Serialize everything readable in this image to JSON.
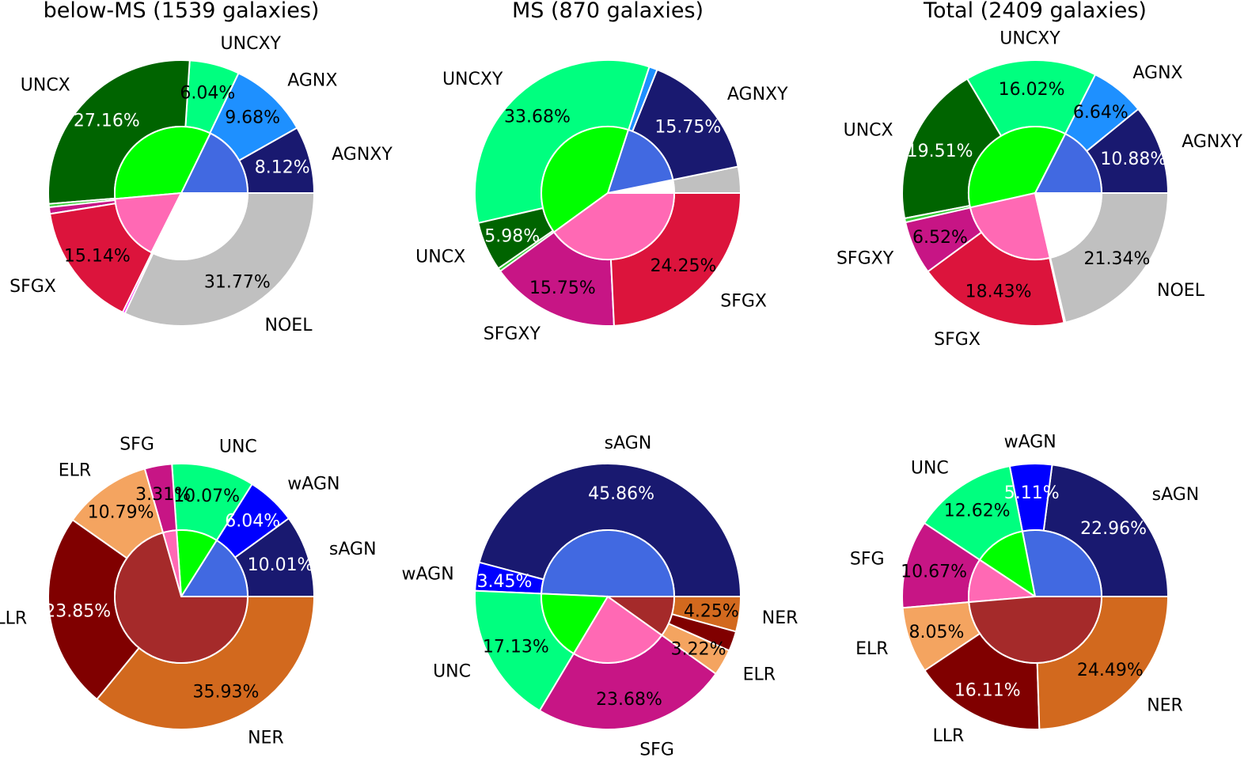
{
  "chart_data": [
    {
      "type": "pie",
      "title": "below-MS (1539 galaxies)",
      "outer": [
        {
          "label": "AGNXY",
          "value": 8.12,
          "color": "#191970",
          "pct_label": "8.12%",
          "pct_color": "#ffffff"
        },
        {
          "label": "AGNX",
          "value": 9.68,
          "color": "#1e90ff",
          "pct_label": "9.68%",
          "pct_color": "#000000"
        },
        {
          "label": "UNCXY",
          "value": 6.04,
          "color": "#00ff7f",
          "pct_label": "6.04%",
          "pct_color": "#000000"
        },
        {
          "label": "UNCX",
          "value": 27.16,
          "color": "#006400",
          "pct_label": "27.16%",
          "pct_color": "#ffffff"
        },
        {
          "label": "",
          "value": 0.4,
          "color": "#32cd32"
        },
        {
          "label": "",
          "value": 0.8,
          "color": "#c71585"
        },
        {
          "label": "SFGX",
          "value": 15.14,
          "color": "#dc143c",
          "pct_label": "15.14%",
          "pct_color": "#000000"
        },
        {
          "label": "",
          "value": 0.3,
          "color": "#ff00ff"
        },
        {
          "label": "NOEL",
          "value": 31.77,
          "color": "#c0c0c0",
          "pct_label": "31.77%",
          "pct_color": "#000000"
        }
      ],
      "inner": [
        {
          "value": 17.8,
          "color": "#4169e1"
        },
        {
          "value": 33.6,
          "color": "#00ff00"
        },
        {
          "value": 16.2,
          "color": "#ff69b4"
        },
        {
          "value": 32.4,
          "color": "#ffffff"
        }
      ]
    },
    {
      "type": "pie",
      "title": "MS (870 galaxies)",
      "outer": [
        {
          "label": "",
          "value": 3.2,
          "color": "#c0c0c0"
        },
        {
          "label": "AGNXY",
          "value": 15.75,
          "color": "#191970",
          "pct_label": "15.75%",
          "pct_color": "#ffffff"
        },
        {
          "label": "",
          "value": 1.0,
          "color": "#1e90ff"
        },
        {
          "label": "UNCXY",
          "value": 33.68,
          "color": "#00ff7f",
          "pct_label": "33.68%",
          "pct_color": "#000000"
        },
        {
          "label": "UNCX",
          "value": 5.98,
          "color": "#006400",
          "pct_label": "5.98%",
          "pct_color": "#ffffff"
        },
        {
          "label": "",
          "value": 0.4,
          "color": "#32cd32"
        },
        {
          "label": "SFGXY",
          "value": 15.75,
          "color": "#c71585",
          "pct_label": "15.75%",
          "pct_color": "#000000"
        },
        {
          "label": "SFGX",
          "value": 24.25,
          "color": "#dc143c",
          "pct_label": "24.25%",
          "pct_color": "#000000"
        }
      ],
      "inner": [
        {
          "value": 3.2,
          "color": "#ffffff"
        },
        {
          "value": 16.8,
          "color": "#4169e1"
        },
        {
          "value": 40.0,
          "color": "#00ff00"
        },
        {
          "value": 40.0,
          "color": "#ff69b4"
        }
      ]
    },
    {
      "type": "pie",
      "title": "Total (2409 galaxies)",
      "outer": [
        {
          "label": "AGNXY",
          "value": 10.88,
          "color": "#191970",
          "pct_label": "10.88%",
          "pct_color": "#ffffff"
        },
        {
          "label": "AGNX",
          "value": 6.64,
          "color": "#1e90ff",
          "pct_label": "6.64%",
          "pct_color": "#000000"
        },
        {
          "label": "UNCXY",
          "value": 16.02,
          "color": "#00ff7f",
          "pct_label": "16.02%",
          "pct_color": "#000000"
        },
        {
          "label": "UNCX",
          "value": 19.51,
          "color": "#006400",
          "pct_label": "19.51%",
          "pct_color": "#ffffff"
        },
        {
          "label": "",
          "value": 0.5,
          "color": "#32cd32"
        },
        {
          "label": "SFGXY",
          "value": 6.52,
          "color": "#c71585",
          "pct_label": "6.52%",
          "pct_color": "#000000"
        },
        {
          "label": "SFGX",
          "value": 18.43,
          "color": "#dc143c",
          "pct_label": "18.43%",
          "pct_color": "#000000"
        },
        {
          "label": "",
          "value": 0.16,
          "color": "#ff00ff"
        },
        {
          "label": "NOEL",
          "value": 21.34,
          "color": "#c0c0c0",
          "pct_label": "21.34%",
          "pct_color": "#000000"
        }
      ],
      "inner": [
        {
          "value": 17.5,
          "color": "#4169e1"
        },
        {
          "value": 36.0,
          "color": "#00ff00"
        },
        {
          "value": 25.1,
          "color": "#ff69b4"
        },
        {
          "value": 21.4,
          "color": "#ffffff"
        }
      ]
    },
    {
      "type": "pie",
      "title": "",
      "outer": [
        {
          "label": "sAGN",
          "value": 10.01,
          "color": "#191970",
          "pct_label": "10.01%",
          "pct_color": "#ffffff"
        },
        {
          "label": "wAGN",
          "value": 6.04,
          "color": "#0000ff",
          "pct_label": "6.04%",
          "pct_color": "#ffffff"
        },
        {
          "label": "UNC",
          "value": 10.07,
          "color": "#00ff7f",
          "pct_label": "10.07%",
          "pct_color": "#000000"
        },
        {
          "label": "SFG",
          "value": 3.31,
          "color": "#c71585",
          "pct_label": "3.31%",
          "pct_color": "#000000"
        },
        {
          "label": "ELR",
          "value": 10.79,
          "color": "#f4a460",
          "pct_label": "10.79%",
          "pct_color": "#000000"
        },
        {
          "label": "LLR",
          "value": 23.85,
          "color": "#800000",
          "pct_label": "23.85%",
          "pct_color": "#ffffff"
        },
        {
          "label": "NER",
          "value": 35.93,
          "color": "#d2691e",
          "pct_label": "35.93%",
          "pct_color": "#000000"
        }
      ],
      "inner": [
        {
          "value": 16.05,
          "color": "#4169e1"
        },
        {
          "value": 10.07,
          "color": "#00ff00"
        },
        {
          "value": 3.31,
          "color": "#ff69b4"
        },
        {
          "value": 70.57,
          "color": "#a52a2a"
        }
      ]
    },
    {
      "type": "pie",
      "title": "",
      "outer": [
        {
          "label": "sAGN",
          "value": 45.86,
          "color": "#191970",
          "pct_label": "45.86%",
          "pct_color": "#ffffff"
        },
        {
          "label": "wAGN",
          "value": 3.45,
          "color": "#0000ff",
          "pct_label": "3.45%",
          "pct_color": "#ffffff"
        },
        {
          "label": "UNC",
          "value": 17.13,
          "color": "#00ff7f",
          "pct_label": "17.13%",
          "pct_color": "#000000"
        },
        {
          "label": "SFG",
          "value": 23.68,
          "color": "#c71585",
          "pct_label": "23.68%",
          "pct_color": "#000000"
        },
        {
          "label": "ELR",
          "value": 3.22,
          "color": "#f4a460",
          "pct_label": "3.22%",
          "pct_color": "#000000"
        },
        {
          "label": "",
          "value": 2.41,
          "color": "#800000"
        },
        {
          "label": "NER",
          "value": 4.25,
          "color": "#d2691e",
          "pct_label": "4.25%",
          "pct_color": "#000000"
        }
      ],
      "inner": [
        {
          "value": 49.31,
          "color": "#4169e1"
        },
        {
          "value": 17.13,
          "color": "#00ff00"
        },
        {
          "value": 23.68,
          "color": "#ff69b4"
        },
        {
          "value": 9.88,
          "color": "#a52a2a"
        }
      ]
    },
    {
      "type": "pie",
      "title": "",
      "outer": [
        {
          "label": "sAGN",
          "value": 22.96,
          "color": "#191970",
          "pct_label": "22.96%",
          "pct_color": "#ffffff"
        },
        {
          "label": "wAGN",
          "value": 5.11,
          "color": "#0000ff",
          "pct_label": "5.11%",
          "pct_color": "#ffffff"
        },
        {
          "label": "UNC",
          "value": 12.62,
          "color": "#00ff7f",
          "pct_label": "12.62%",
          "pct_color": "#000000"
        },
        {
          "label": "SFG",
          "value": 10.67,
          "color": "#c71585",
          "pct_label": "10.67%",
          "pct_color": "#000000"
        },
        {
          "label": "ELR",
          "value": 8.05,
          "color": "#f4a460",
          "pct_label": "8.05%",
          "pct_color": "#000000"
        },
        {
          "label": "LLR",
          "value": 16.11,
          "color": "#800000",
          "pct_label": "16.11%",
          "pct_color": "#ffffff"
        },
        {
          "label": "NER",
          "value": 24.49,
          "color": "#d2691e",
          "pct_label": "24.49%",
          "pct_color": "#000000"
        }
      ],
      "inner": [
        {
          "value": 28.07,
          "color": "#4169e1"
        },
        {
          "value": 12.62,
          "color": "#00ff00"
        },
        {
          "value": 10.67,
          "color": "#ff69b4"
        },
        {
          "value": 48.64,
          "color": "#a52a2a"
        }
      ]
    }
  ]
}
